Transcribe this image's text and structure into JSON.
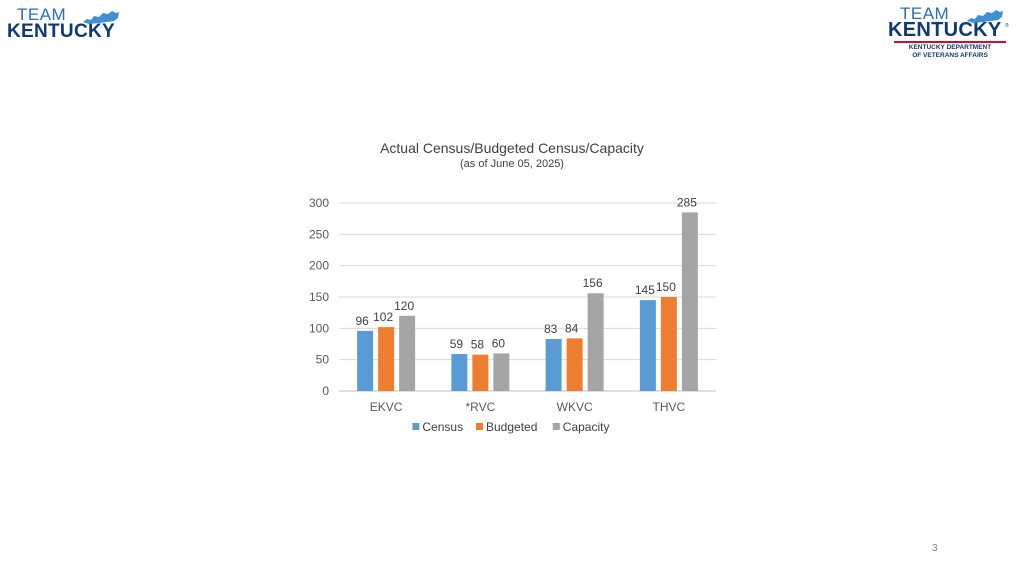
{
  "header": {
    "logo_left": {
      "line1": "TEAM",
      "line2": "KENTUCKY"
    },
    "logo_right": {
      "line1": "TEAM",
      "line2": "KENTUCKY",
      "registered": "®",
      "dept_line1": "KENTUCKY DEPARTMENT",
      "dept_line2": "OF VETERANS AFFAIRS"
    }
  },
  "chart_data": {
    "type": "bar",
    "title": "Actual Census/Budgeted Census/Capacity",
    "subtitle": "(as of June 05, 2025)",
    "xlabel": "",
    "ylabel": "",
    "categories": [
      "EKVC",
      "*RVC",
      "WKVC",
      "THVC"
    ],
    "series": [
      {
        "name": "Census",
        "color": "#5b9bd5",
        "values": [
          96,
          59,
          83,
          145
        ]
      },
      {
        "name": "Budgeted",
        "color": "#ed7d31",
        "values": [
          102,
          58,
          84,
          150
        ]
      },
      {
        "name": "Capacity",
        "color": "#a5a5a5",
        "values": [
          120,
          60,
          156,
          285
        ]
      }
    ],
    "ylim": [
      0,
      300
    ],
    "yticks": [
      0,
      50,
      100,
      150,
      200,
      250,
      300
    ],
    "grid": true,
    "legend": "bottom",
    "data_labels": true
  },
  "footer": {
    "page_number": "3"
  }
}
